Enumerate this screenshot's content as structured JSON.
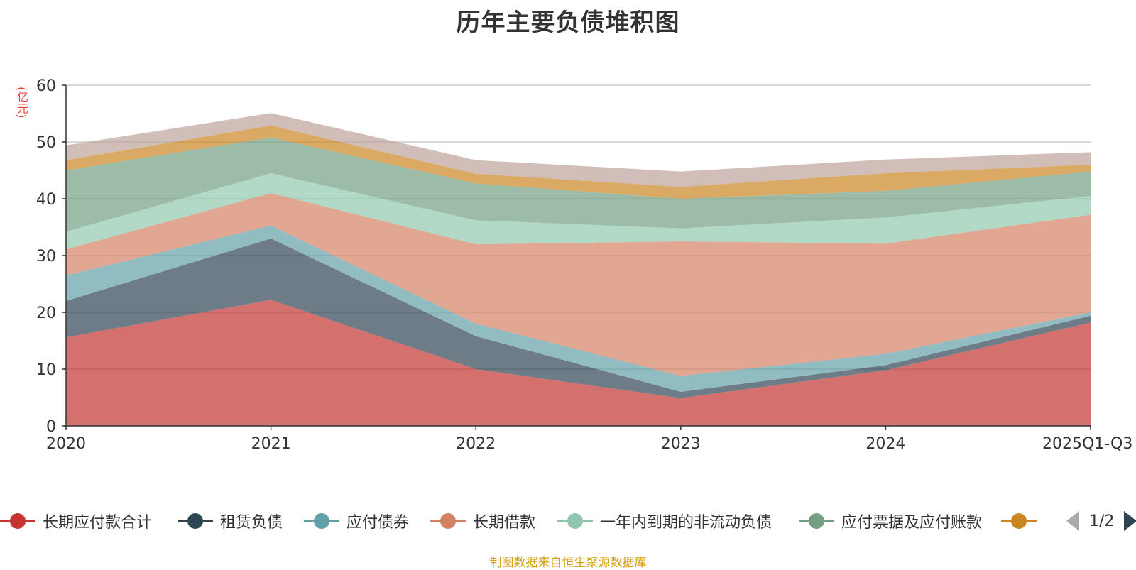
{
  "chart_data": {
    "type": "area",
    "stacked": true,
    "title": "历年主要负债堆积图",
    "ylabel": "(亿元)",
    "ylim": [
      0,
      60
    ],
    "yticks": [
      0,
      10,
      20,
      30,
      40,
      50,
      60
    ],
    "categories": [
      "2020",
      "2021",
      "2022",
      "2023",
      "2024",
      "2025Q1-Q3"
    ],
    "grid": true,
    "series": [
      {
        "name": "长期应付款合计",
        "color": "#c23531",
        "values": [
          15.6,
          22.2,
          10.0,
          4.9,
          9.8,
          18.2
        ]
      },
      {
        "name": "租赁负债",
        "color": "#2f4554",
        "values": [
          6.4,
          10.8,
          5.8,
          1.1,
          0.9,
          1.2
        ]
      },
      {
        "name": "应付债券",
        "color": "#61a0a8",
        "values": [
          4.5,
          2.3,
          2.2,
          2.8,
          2.0,
          0.6
        ]
      },
      {
        "name": "长期借款",
        "color": "#d48265",
        "values": [
          4.6,
          5.7,
          14.0,
          23.7,
          19.4,
          17.2
        ]
      },
      {
        "name": "一年内到期的非流动负债",
        "color": "#91c7ae",
        "values": [
          3.1,
          3.5,
          4.2,
          2.3,
          4.6,
          3.3
        ]
      },
      {
        "name": "应付票据及应付账款",
        "color": "#749f83",
        "values": [
          10.8,
          6.3,
          6.5,
          5.2,
          4.7,
          4.3
        ]
      },
      {
        "name": "",
        "color": "#ca8622",
        "values": [
          1.8,
          2.1,
          1.7,
          2.1,
          3.1,
          1.2
        ]
      },
      {
        "name": "",
        "color": "#bda29a",
        "values": [
          2.6,
          2.2,
          2.4,
          2.7,
          2.4,
          2.2
        ]
      }
    ]
  },
  "legend_page": "1/2",
  "source_note": "制图数据来自恒生聚源数据库"
}
